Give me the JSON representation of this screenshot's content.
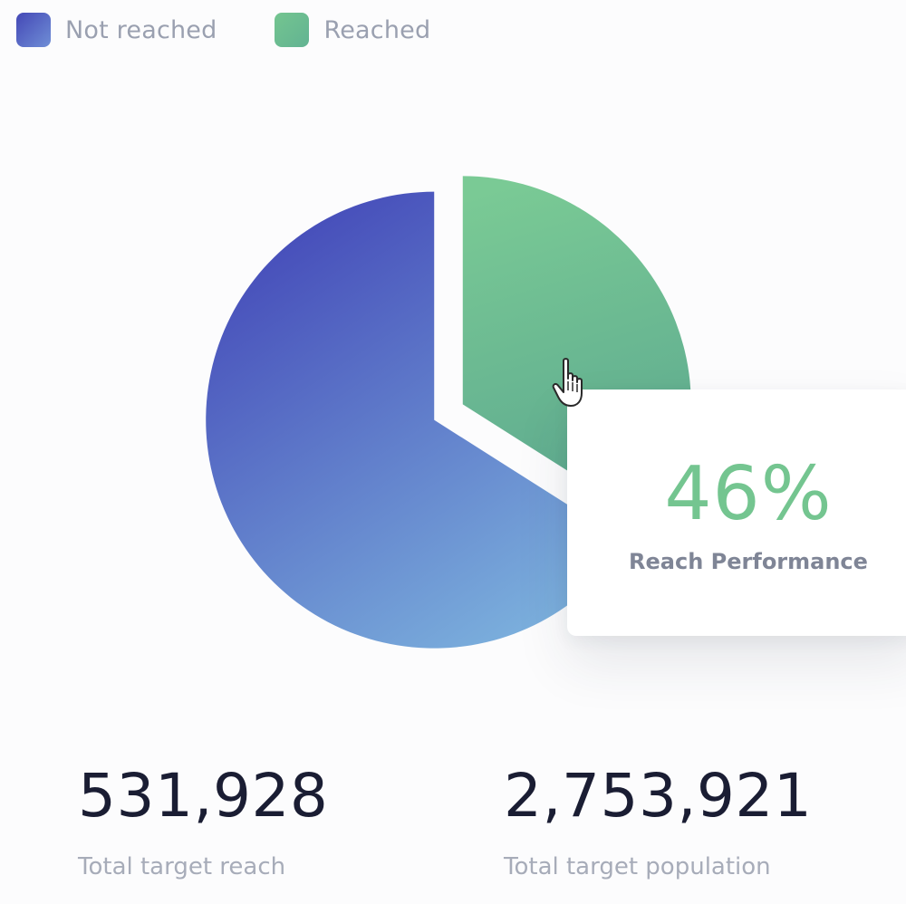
{
  "legend": {
    "items": [
      {
        "label": "Not reached",
        "color": "#4f5fc0"
      },
      {
        "label": "Reached",
        "color": "#6dbf90"
      }
    ]
  },
  "chart_data": {
    "type": "pie",
    "slices": [
      {
        "label": "Not reached",
        "value": 66
      },
      {
        "label": "Reached",
        "value": 34
      }
    ],
    "title": ""
  },
  "tooltip": {
    "value": "46%",
    "label": "Reach Performance"
  },
  "stats": {
    "reach": {
      "value": "531,928",
      "label": "Total target reach"
    },
    "population": {
      "value": "2,753,921",
      "label": "Total target population"
    }
  },
  "colors": {
    "blue_start": "#4346b7",
    "blue_end": "#7aaedb",
    "green_start": "#79c994",
    "green_end": "#5fae90",
    "text_dark": "#1a1d33",
    "text_muted": "#a7acb9"
  }
}
